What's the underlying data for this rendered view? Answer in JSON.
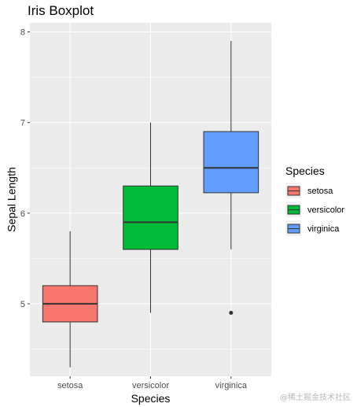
{
  "chart_data": {
    "type": "boxplot",
    "title": "Iris Boxplot",
    "xlabel": "Species",
    "ylabel": "Sepal Length",
    "ylim": [
      4.2,
      8.1
    ],
    "yticks": [
      5,
      6,
      7,
      8
    ],
    "categories": [
      "setosa",
      "versicolor",
      "virginica"
    ],
    "boxes": [
      {
        "category": "setosa",
        "whisker_low": 4.3,
        "q1": 4.8,
        "median": 5.0,
        "q3": 5.2,
        "whisker_high": 5.8,
        "outliers": [],
        "color": "#F8766D"
      },
      {
        "category": "versicolor",
        "whisker_low": 4.9,
        "q1": 5.6,
        "median": 5.9,
        "q3": 6.3,
        "whisker_high": 7.0,
        "outliers": [],
        "color": "#00BA38"
      },
      {
        "category": "virginica",
        "whisker_low": 5.6,
        "q1": 6.225,
        "median": 6.5,
        "q3": 6.9,
        "whisker_high": 7.9,
        "outliers": [
          4.9
        ],
        "color": "#619CFF"
      }
    ],
    "legend": {
      "title": "Species",
      "placement": "right",
      "entries": [
        "setosa",
        "versicolor",
        "virginica"
      ]
    },
    "grid": true
  },
  "watermark": "@稀土掘金技术社区"
}
